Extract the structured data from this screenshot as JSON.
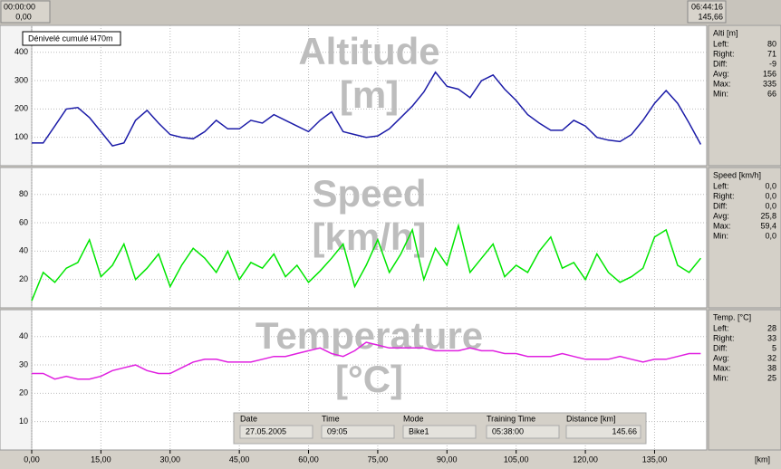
{
  "range_bar": {
    "start": {
      "time": "00:00:00",
      "distance": "0,00"
    },
    "end": {
      "time": "06:44:16",
      "distance": "145,66"
    }
  },
  "chart_data": [
    {
      "type": "line",
      "title": [
        "Altitude",
        "[m]"
      ],
      "annotation": "Dénivelé cumulé ł470m",
      "color": "#1c1ca8",
      "grid": true,
      "x": [
        0,
        2.5,
        5,
        7.5,
        10,
        12.5,
        15,
        17.5,
        20,
        22.5,
        25,
        27.5,
        30,
        32.5,
        35,
        37.5,
        40,
        42.5,
        45,
        47.5,
        50,
        52.5,
        55,
        57.5,
        60,
        62.5,
        65,
        67.5,
        70,
        72.5,
        75,
        77.5,
        80,
        82.5,
        85,
        87.5,
        90,
        92.5,
        95,
        97.5,
        100,
        102.5,
        105,
        107.5,
        110,
        112.5,
        115,
        117.5,
        120,
        122.5,
        125,
        127.5,
        130,
        132.5,
        135,
        137.5,
        140,
        142.5,
        145
      ],
      "values": [
        80,
        80,
        140,
        200,
        205,
        170,
        120,
        70,
        80,
        160,
        195,
        150,
        110,
        100,
        95,
        120,
        160,
        130,
        130,
        160,
        150,
        180,
        160,
        140,
        120,
        160,
        190,
        120,
        110,
        100,
        105,
        130,
        170,
        210,
        260,
        330,
        280,
        270,
        240,
        300,
        320,
        270,
        230,
        180,
        150,
        125,
        125,
        160,
        140,
        100,
        90,
        85,
        110,
        160,
        220,
        265,
        220,
        150,
        75
      ],
      "xlim": [
        0,
        146.3
      ],
      "xticks": [
        0,
        15,
        30,
        45,
        60,
        75,
        90,
        105,
        120,
        135
      ],
      "ylim": [
        0,
        495
      ],
      "yticks": [
        100,
        200,
        300,
        400
      ],
      "stats": {
        "heading": "Alti [m]",
        "rows": [
          [
            "Left:",
            "80"
          ],
          [
            "Right:",
            "71"
          ],
          [
            "Diff:",
            "-9"
          ],
          [
            "Avg:",
            "156"
          ],
          [
            "Max:",
            "335"
          ],
          [
            "Min:",
            "66"
          ]
        ]
      }
    },
    {
      "type": "line",
      "title": [
        "Speed",
        "[km/h]"
      ],
      "color": "#00e600",
      "grid": true,
      "x": [
        0,
        2.5,
        5,
        7.5,
        10,
        12.5,
        15,
        17.5,
        20,
        22.5,
        25,
        27.5,
        30,
        32.5,
        35,
        37.5,
        40,
        42.5,
        45,
        47.5,
        50,
        52.5,
        55,
        57.5,
        60,
        62.5,
        65,
        67.5,
        70,
        72.5,
        75,
        77.5,
        80,
        82.5,
        85,
        87.5,
        90,
        92.5,
        95,
        97.5,
        100,
        102.5,
        105,
        107.5,
        110,
        112.5,
        115,
        117.5,
        120,
        122.5,
        125,
        127.5,
        130,
        132.5,
        135,
        137.5,
        140,
        142.5,
        145
      ],
      "values": [
        5,
        25,
        18,
        28,
        32,
        48,
        22,
        30,
        45,
        20,
        28,
        38,
        15,
        30,
        42,
        35,
        25,
        40,
        20,
        32,
        28,
        38,
        22,
        30,
        18,
        26,
        35,
        45,
        15,
        30,
        48,
        25,
        38,
        55,
        20,
        42,
        30,
        58,
        25,
        35,
        45,
        22,
        30,
        25,
        40,
        50,
        28,
        32,
        20,
        38,
        25,
        18,
        22,
        28,
        50,
        55,
        30,
        25,
        35
      ],
      "xlim": [
        0,
        146.3
      ],
      "xticks": [
        0,
        15,
        30,
        45,
        60,
        75,
        90,
        105,
        120,
        135
      ],
      "ylim": [
        0,
        99
      ],
      "yticks": [
        20,
        40,
        60,
        80
      ],
      "stats": {
        "heading": "Speed [km/h]",
        "rows": [
          [
            "Left:",
            "0,0"
          ],
          [
            "Right:",
            "0,0"
          ],
          [
            "Diff:",
            "0,0"
          ],
          [
            "Avg:",
            "25,8"
          ],
          [
            "Max:",
            "59,4"
          ],
          [
            "Min:",
            "0,0"
          ]
        ]
      }
    },
    {
      "type": "line",
      "title": [
        "Temperature",
        "[°C]"
      ],
      "color": "#e020e0",
      "grid": true,
      "x": [
        0,
        2.5,
        5,
        7.5,
        10,
        12.5,
        15,
        17.5,
        20,
        22.5,
        25,
        27.5,
        30,
        32.5,
        35,
        37.5,
        40,
        42.5,
        45,
        47.5,
        50,
        52.5,
        55,
        57.5,
        60,
        62.5,
        65,
        67.5,
        70,
        72.5,
        75,
        77.5,
        80,
        82.5,
        85,
        87.5,
        90,
        92.5,
        95,
        97.5,
        100,
        102.5,
        105,
        107.5,
        110,
        112.5,
        115,
        117.5,
        120,
        122.5,
        125,
        127.5,
        130,
        132.5,
        135,
        137.5,
        140,
        142.5,
        145
      ],
      "values": [
        27,
        27,
        25,
        26,
        25,
        25,
        26,
        28,
        29,
        30,
        28,
        27,
        27,
        29,
        31,
        32,
        32,
        31,
        31,
        31,
        32,
        33,
        33,
        34,
        35,
        36,
        34,
        33,
        35,
        38,
        37,
        36,
        36,
        36,
        36,
        35,
        35,
        35,
        36,
        35,
        35,
        34,
        34,
        33,
        33,
        33,
        34,
        33,
        32,
        32,
        32,
        33,
        32,
        31,
        32,
        32,
        33,
        34,
        34
      ],
      "xlim": [
        0,
        146.3
      ],
      "xlabel": "[km]",
      "xticks": [
        {
          "value": 0,
          "label": "0,00"
        },
        {
          "value": 15,
          "label": "15,00"
        },
        {
          "value": 30,
          "label": "30,00"
        },
        {
          "value": 45,
          "label": "45,00"
        },
        {
          "value": 60,
          "label": "60,00"
        },
        {
          "value": 75,
          "label": "75,00"
        },
        {
          "value": 90,
          "label": "90,00"
        },
        {
          "value": 105,
          "label": "105,00"
        },
        {
          "value": 120,
          "label": "120,00"
        },
        {
          "value": 135,
          "label": "135,00"
        }
      ],
      "ylim": [
        0,
        49.5
      ],
      "yticks": [
        10,
        20,
        30,
        40
      ],
      "stats": {
        "heading": "Temp. [°C]",
        "rows": [
          [
            "Left:",
            "28"
          ],
          [
            "Right:",
            "33"
          ],
          [
            "Diff:",
            "5"
          ],
          [
            "Avg:",
            "32"
          ],
          [
            "Max:",
            "38"
          ],
          [
            "Min:",
            "25"
          ]
        ]
      }
    }
  ],
  "info": [
    {
      "label": "Date",
      "value": "27.05.2005"
    },
    {
      "label": "Time",
      "value": "09:05"
    },
    {
      "label": "Mode",
      "value": "Bike1"
    },
    {
      "label": "Training Time",
      "value": "05:38:00"
    },
    {
      "label": "Distance [km]",
      "value": "145.66"
    }
  ]
}
